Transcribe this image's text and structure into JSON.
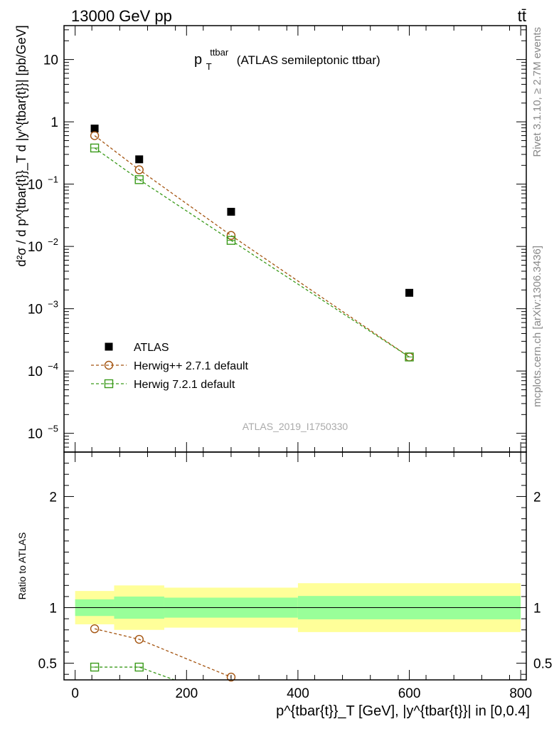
{
  "header": {
    "left": "13000 GeV pp",
    "right": "tt̄"
  },
  "side_labels": {
    "rivet": "Rivet 3.1.10, ≥ 2.7M events",
    "mcplots": "mcplots.cern.ch [arXiv:1306.3436]"
  },
  "watermark": "ATLAS_2019_I1750330",
  "plot_title": {
    "main": "p",
    "sub": "T",
    "sup": "ttbar",
    "rest": "(ATLAS semileptonic ttbar)"
  },
  "ylabel_main": "d²σ / d p^{tbar{t}}_T d |y^{tbar{t}}| [pb/GeV]",
  "ylabel_ratio": "Ratio to ATLAS",
  "xlabel": "p^{tbar{t}}_T [GeV], |y^{tbar{t}}| in [0,0.4]",
  "colors": {
    "data": "#000000",
    "herwigpp": "#a45410",
    "herwig7": "#3a9a1a",
    "band_inner": "#99ff99",
    "band_outer": "#ffff99"
  },
  "chart_data": [
    {
      "type": "scatter",
      "panel": "main",
      "title": "p_T^ttbar (ATLAS semileptonic ttbar)",
      "ylabel": "d²σ / d p^{tbar{t}}_T d |y^{tbar{t}}| [pb/GeV]",
      "yscale": "log",
      "ylim": [
        5e-06,
        35
      ],
      "xlim": [
        -20,
        810
      ],
      "y_ticks": [
        {
          "value": 10,
          "label": "10"
        },
        {
          "value": 1,
          "label": "1"
        },
        {
          "value": 0.1,
          "label": "10",
          "exp": "−1"
        },
        {
          "value": 0.01,
          "label": "10",
          "exp": "−2"
        },
        {
          "value": 0.001,
          "label": "10",
          "exp": "−3"
        },
        {
          "value": 0.0001,
          "label": "10",
          "exp": "−4"
        },
        {
          "value": 1e-05,
          "label": "10",
          "exp": "−5"
        }
      ],
      "legend_position": "lower-left",
      "series": [
        {
          "name": "ATLAS",
          "marker": "filled-square",
          "x": [
            35,
            115,
            280,
            600
          ],
          "y": [
            0.78,
            0.25,
            0.036,
            0.0018
          ]
        },
        {
          "name": "Herwig++ 2.7.1 default",
          "marker": "open-circle",
          "line": "dashed",
          "x": [
            35,
            115,
            280,
            600
          ],
          "y": [
            0.6,
            0.17,
            0.015,
            0.000168
          ]
        },
        {
          "name": "Herwig 7.2.1 default",
          "marker": "open-square",
          "line": "dashed",
          "x": [
            35,
            115,
            280,
            600
          ],
          "y": [
            0.38,
            0.118,
            0.0125,
            0.000168
          ]
        }
      ]
    },
    {
      "type": "line",
      "panel": "ratio",
      "ylabel": "Ratio to ATLAS",
      "xlabel": "p^{tbar{t}}_T [GeV], |y^{tbar{t}}| in [0,0.4]",
      "ylim": [
        0.35,
        2.4
      ],
      "xlim": [
        -20,
        810
      ],
      "x_ticks": [
        0,
        200,
        400,
        600,
        800
      ],
      "y_ticks": [
        0.5,
        1,
        2
      ],
      "bands": [
        {
          "x0": 0,
          "x1": 70,
          "inner": [
            0.925,
            1.075
          ],
          "outer": [
            0.85,
            1.15
          ]
        },
        {
          "x0": 70,
          "x1": 160,
          "inner": [
            0.9,
            1.1
          ],
          "outer": [
            0.8,
            1.2
          ]
        },
        {
          "x0": 160,
          "x1": 400,
          "inner": [
            0.91,
            1.09
          ],
          "outer": [
            0.82,
            1.18
          ]
        },
        {
          "x0": 400,
          "x1": 800,
          "inner": [
            0.895,
            1.105
          ],
          "outer": [
            0.78,
            1.22
          ]
        }
      ],
      "series": [
        {
          "name": "Herwig++ 2.7.1 default",
          "marker": "open-circle",
          "line": "dashed",
          "x": [
            35,
            115,
            280
          ],
          "y": [
            0.81,
            0.715,
            0.375
          ]
        },
        {
          "name": "Herwig 7.2.1 default",
          "marker": "open-square",
          "line": "dashed",
          "x": [
            35,
            115,
            178
          ],
          "y": [
            0.465,
            0.465,
            0.35
          ],
          "clip_last": true
        }
      ]
    }
  ]
}
